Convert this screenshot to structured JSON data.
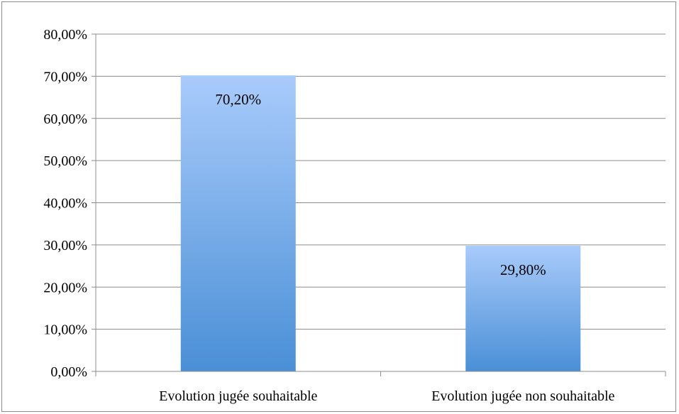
{
  "chart_data": {
    "type": "bar",
    "title": "",
    "xlabel": "",
    "ylabel": "",
    "categories": [
      "Evolution jugée souhaitable",
      "Evolution jugée non souhaitable"
    ],
    "values": [
      70.2,
      29.8
    ],
    "data_labels": [
      "70,20%",
      "29,80%"
    ],
    "y_ticks": [
      0,
      10,
      20,
      30,
      40,
      50,
      60,
      70,
      80
    ],
    "y_tick_labels": [
      "0,00%",
      "10,00%",
      "20,00%",
      "30,00%",
      "40,00%",
      "50,00%",
      "60,00%",
      "70,00%",
      "80,00%"
    ],
    "ylim": [
      0,
      80
    ],
    "grid": true,
    "legend": "none",
    "colors": {
      "bar_top": "#a9cbfb",
      "bar_bottom": "#4a8fd6",
      "gridline": "#8c8c8c",
      "axis": "#8c8c8c"
    }
  }
}
